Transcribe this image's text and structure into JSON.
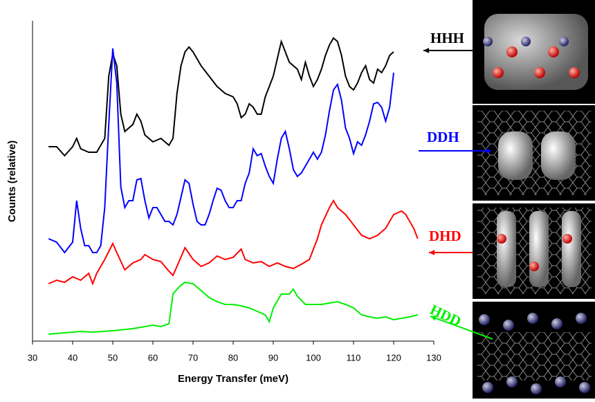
{
  "chart_data": {
    "type": "line",
    "xlabel": "Energy Transfer (meV)",
    "ylabel": "Counts (relative)",
    "xlim": [
      30,
      130
    ],
    "xticks": [
      30,
      40,
      50,
      60,
      70,
      80,
      90,
      100,
      110,
      120,
      130
    ],
    "ylim": [
      0,
      463
    ],
    "series": [
      {
        "name": "HHH",
        "color": "#000000",
        "x": [
          34,
          36,
          38,
          40,
          41,
          42,
          44,
          46,
          48,
          49,
          50,
          51,
          52,
          53,
          54,
          55,
          56,
          57,
          58,
          60,
          62,
          64,
          65,
          66,
          67,
          68,
          69,
          70,
          72,
          74,
          76,
          78,
          80,
          81,
          82,
          83,
          84,
          85,
          86,
          87,
          88,
          89,
          90,
          91,
          92,
          93,
          94,
          95,
          96,
          97,
          98,
          99,
          100,
          101,
          102,
          103,
          104,
          105,
          106,
          107,
          108,
          109,
          110,
          111,
          112,
          113,
          114,
          115,
          116,
          117,
          118,
          119,
          120
        ],
        "values": [
          281,
          281,
          268,
          281,
          293,
          278,
          273,
          273,
          293,
          383,
          415,
          398,
          328,
          303,
          308,
          313,
          328,
          318,
          298,
          288,
          293,
          283,
          293,
          358,
          398,
          418,
          425,
          418,
          398,
          383,
          368,
          358,
          353,
          343,
          323,
          328,
          343,
          338,
          328,
          328,
          353,
          368,
          383,
          408,
          433,
          418,
          403,
          398,
          393,
          378,
          403,
          383,
          368,
          378,
          393,
          413,
          428,
          438,
          433,
          413,
          383,
          368,
          363,
          373,
          388,
          398,
          378,
          373,
          393,
          388,
          398,
          413,
          418
        ]
      },
      {
        "name": "DDH",
        "color": "#0000ff",
        "x": [
          34,
          36,
          38,
          40,
          41,
          42,
          43,
          44,
          45,
          46,
          47,
          48,
          49,
          50,
          51,
          52,
          53,
          54,
          55,
          56,
          57,
          58,
          59,
          60,
          61,
          62,
          63,
          64,
          65,
          66,
          67,
          68,
          69,
          70,
          71,
          72,
          73,
          74,
          75,
          76,
          77,
          78,
          79,
          80,
          81,
          82,
          83,
          84,
          85,
          86,
          87,
          88,
          89,
          90,
          91,
          92,
          93,
          94,
          95,
          96,
          97,
          98,
          99,
          100,
          101,
          102,
          103,
          104,
          105,
          106,
          107,
          108,
          109,
          110,
          111,
          112,
          113,
          114,
          115,
          116,
          117,
          118,
          119,
          120
        ],
        "values": [
          148,
          143,
          128,
          143,
          203,
          163,
          138,
          138,
          128,
          128,
          138,
          193,
          313,
          423,
          373,
          223,
          193,
          203,
          203,
          233,
          235,
          203,
          178,
          193,
          193,
          183,
          173,
          173,
          168,
          183,
          208,
          233,
          228,
          198,
          173,
          168,
          168,
          183,
          203,
          221,
          218,
          203,
          193,
          193,
          203,
          203,
          228,
          243,
          278,
          268,
          271,
          253,
          238,
          228,
          263,
          293,
          303,
          278,
          248,
          238,
          243,
          253,
          263,
          273,
          263,
          273,
          298,
          333,
          363,
          371,
          348,
          308,
          293,
          271,
          288,
          283,
          298,
          318,
          343,
          345,
          338,
          318,
          338,
          388
        ]
      },
      {
        "name": "DHD",
        "color": "#ff0000",
        "x": [
          34,
          36,
          38,
          40,
          42,
          44,
          45,
          46,
          48,
          50,
          51,
          53,
          55,
          57,
          58,
          60,
          62,
          64,
          65,
          66,
          68,
          70,
          72,
          74,
          76,
          78,
          80,
          82,
          83,
          85,
          87,
          89,
          91,
          93,
          95,
          97,
          99,
          100,
          101,
          102,
          104,
          105,
          106,
          108,
          110,
          112,
          114,
          116,
          118,
          120,
          122,
          123,
          124,
          125,
          126
        ],
        "values": [
          83,
          88,
          85,
          93,
          88,
          98,
          83,
          98,
          118,
          141,
          128,
          103,
          113,
          118,
          125,
          118,
          115,
          101,
          95,
          108,
          135,
          118,
          108,
          113,
          123,
          118,
          121,
          133,
          118,
          113,
          115,
          108,
          113,
          108,
          105,
          111,
          118,
          133,
          148,
          168,
          193,
          203,
          193,
          183,
          168,
          153,
          148,
          153,
          163,
          183,
          188,
          183,
          173,
          163,
          148
        ]
      },
      {
        "name": "HDD",
        "color": "#00ee00",
        "x": [
          34,
          36,
          38,
          40,
          42,
          45,
          50,
          55,
          60,
          62,
          64,
          65,
          66,
          67,
          68,
          70,
          72,
          74,
          76,
          78,
          80,
          82,
          84,
          86,
          88,
          89,
          90,
          92,
          94,
          95,
          96,
          98,
          100,
          102,
          104,
          106,
          108,
          110,
          112,
          114,
          116,
          118,
          120,
          122,
          124,
          126
        ],
        "values": [
          10,
          11,
          12,
          13,
          14,
          13,
          15,
          18,
          23,
          21,
          25,
          68,
          75,
          81,
          85,
          83,
          73,
          63,
          57,
          53,
          53,
          51,
          48,
          43,
          38,
          28,
          48,
          68,
          68,
          75,
          65,
          53,
          53,
          53,
          55,
          57,
          53,
          48,
          38,
          35,
          33,
          35,
          31,
          33,
          35,
          38
        ]
      }
    ]
  }
}
